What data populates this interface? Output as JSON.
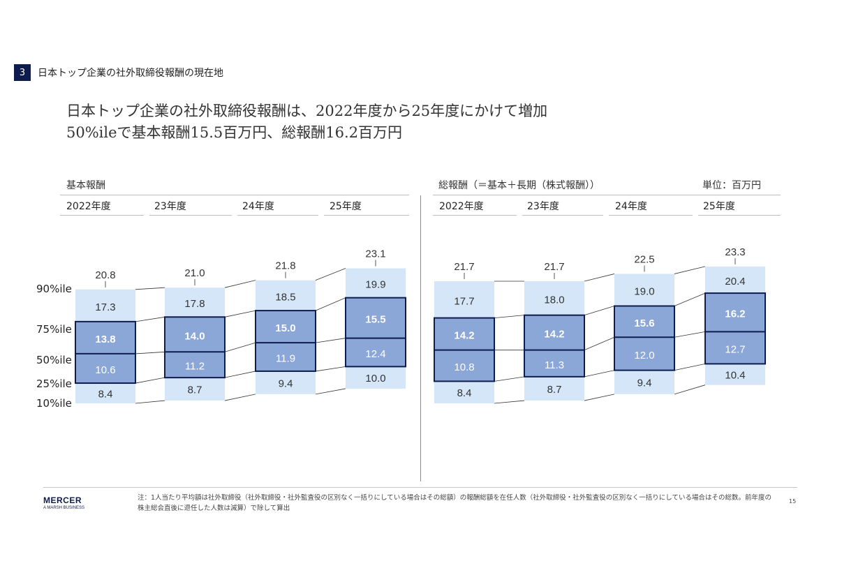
{
  "section": {
    "number": "3",
    "title": "日本トップ企業の社外取締役報酬の現在地"
  },
  "title": {
    "line1": "日本トップ企業の社外取締役報酬は、2022年度から25年度にかけて増加",
    "line2": "50%ileで基本報酬15.5百万円、総報酬16.2百万円"
  },
  "unit_label": "単位：百万円",
  "percentile_labels": [
    "90%ile",
    "75%ile",
    "50%ile",
    "25%ile",
    "10%ile"
  ],
  "colors": {
    "light_box": "#d4e6f7",
    "iqr_box": "#8aa7d8",
    "outline": "#0e1b4d",
    "connector": "#333333"
  },
  "chart_data": [
    {
      "type": "box",
      "title": "基本報酬",
      "categories": [
        "2022年度",
        "23年度",
        "24年度",
        "25年度"
      ],
      "series": [
        {
          "name": "90%ile",
          "values": [
            20.8,
            21.0,
            21.8,
            23.1
          ]
        },
        {
          "name": "75%ile",
          "values": [
            17.3,
            17.8,
            18.5,
            19.9
          ]
        },
        {
          "name": "50%ile",
          "values": [
            13.8,
            14.0,
            15.0,
            15.5
          ]
        },
        {
          "name": "25%ile",
          "values": [
            10.6,
            11.2,
            11.9,
            12.4
          ]
        },
        {
          "name": "10%ile",
          "values": [
            8.4,
            8.7,
            9.4,
            10.0
          ]
        }
      ]
    },
    {
      "type": "box",
      "title": "総報酬（＝基本＋長期（株式報酬））",
      "categories": [
        "2022年度",
        "23年度",
        "24年度",
        "25年度"
      ],
      "series": [
        {
          "name": "90%ile",
          "values": [
            21.7,
            21.7,
            22.5,
            23.3
          ]
        },
        {
          "name": "75%ile",
          "values": [
            17.7,
            18.0,
            19.0,
            20.4
          ]
        },
        {
          "name": "50%ile",
          "values": [
            14.2,
            14.2,
            15.6,
            16.2
          ]
        },
        {
          "name": "25%ile",
          "values": [
            10.8,
            11.3,
            12.0,
            12.7
          ]
        },
        {
          "name": "10%ile",
          "values": [
            8.4,
            8.7,
            9.4,
            10.4
          ]
        }
      ]
    }
  ],
  "footer": {
    "logo": "MERCER",
    "logo_sub": "A MARSH BUSINESS",
    "note": "注：1人当たり平均額は社外取締役（社外取締役・社外監査役の区別なく一括りにしている場合はその総額）の報酬総額を在任人数（社外取締役・社外監査役の区別なく一括りにしている場合はその総数。前年度の株主総会直後に退任した人数は減算）で除して算出",
    "page": "15"
  }
}
